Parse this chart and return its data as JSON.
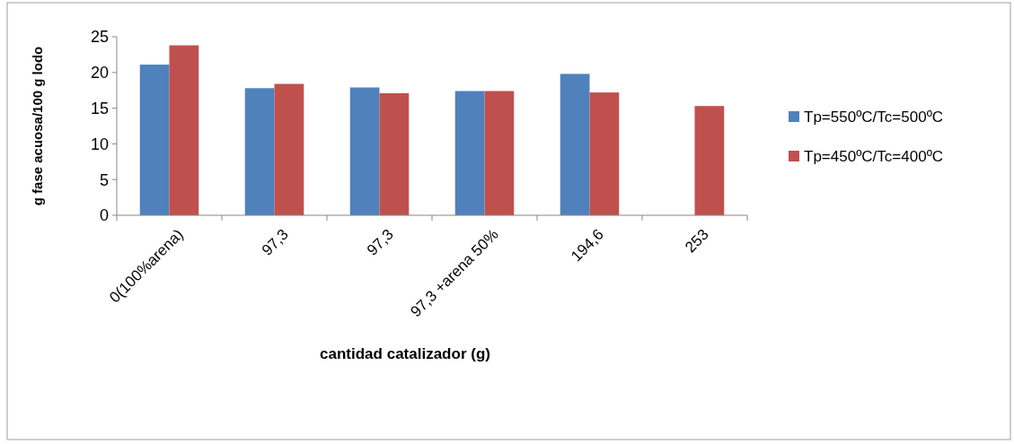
{
  "chart_data": {
    "type": "bar",
    "xlabel": "cantidad catalizador (g)",
    "ylabel": "g fase acuosa/100 g lodo",
    "categories": [
      "0(100%arena)",
      "97,3",
      "97,3",
      "97,3 +arena 50%",
      "194,6",
      "253"
    ],
    "series": [
      {
        "name": "Tp=550ºC/Tc=500ºC",
        "color": "#4f81bd",
        "values": [
          21.1,
          17.8,
          17.9,
          17.4,
          19.8,
          null
        ]
      },
      {
        "name": "Tp=450ºC/Tc=400ºC",
        "color": "#c0504d",
        "values": [
          23.8,
          18.4,
          17.1,
          17.4,
          17.2,
          15.3
        ]
      }
    ],
    "ylim": [
      0,
      25
    ],
    "yticks": [
      0,
      5,
      10,
      15,
      20,
      25
    ],
    "grid": false,
    "legend": "right"
  }
}
